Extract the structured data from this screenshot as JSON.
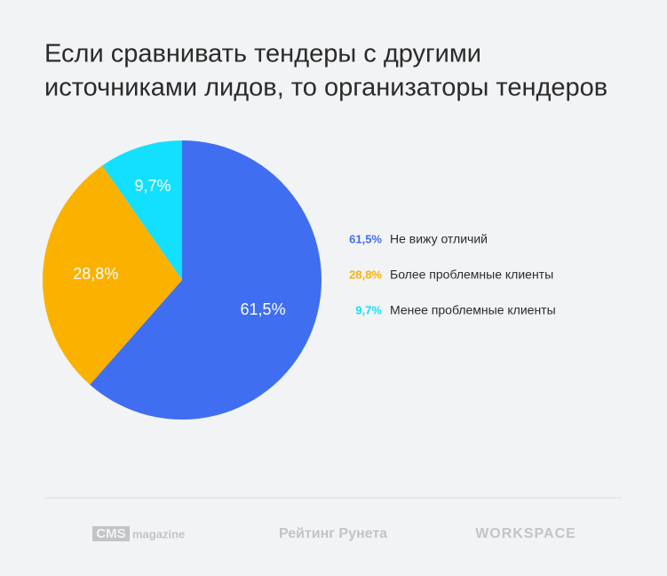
{
  "chart_data": {
    "type": "pie",
    "title": [
      "Если сравнивать тендеры с другими",
      "источниками лидов, то организаторы тендеров"
    ],
    "categories": [
      "Не вижу отличий",
      "Более проблемные клиенты",
      "Менее проблемные клиенты"
    ],
    "values": [
      61.5,
      28.8,
      9.7
    ],
    "value_labels": [
      "61,5%",
      "28,8%",
      "9,7%"
    ],
    "colors": [
      "#3f6ef0",
      "#fbb100",
      "#13e0ff"
    ],
    "legend": "right"
  },
  "footer": {
    "logos": [
      "CMS",
      "magazine",
      "Рейтинг Рунета",
      "WORKSPACE"
    ]
  }
}
